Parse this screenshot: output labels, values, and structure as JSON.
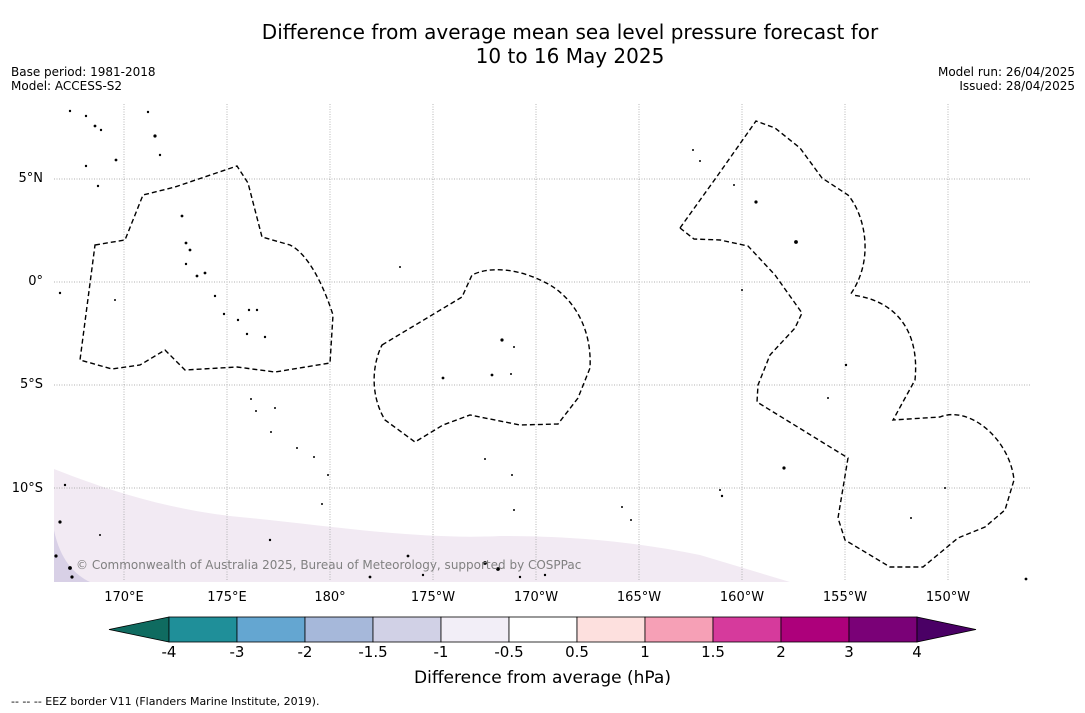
{
  "title_line1": "Difference from average mean sea level pressure forecast for",
  "title_line2": "10 to 16 May 2025",
  "base_period": "Base period: 1981-2018",
  "model": "Model: ACCESS-S2",
  "model_run": "Model run: 26/04/2025",
  "issued": "Issued: 28/04/2025",
  "lat_labels": [
    "5°N",
    "0°",
    "5°S",
    "10°S"
  ],
  "lon_labels": [
    "170°E",
    "175°E",
    "180°",
    "175°W",
    "170°W",
    "165°W",
    "160°W",
    "155°W",
    "150°W"
  ],
  "copyright": "© Commonwealth of Australia 2025, Bureau of Meteorology, supported by COSPPac",
  "colorbar": {
    "title": "Difference from average (hPa)",
    "ticks": [
      "-4",
      "-3",
      "-2",
      "-1.5",
      "-1",
      "-0.5",
      "0.5",
      "1",
      "1.5",
      "2",
      "3",
      "4"
    ],
    "colors": [
      "#0f6b60",
      "#1f8f99",
      "#64a6d1",
      "#a6b8da",
      "#d1d1e6",
      "#f2eef7",
      "#ffffff",
      "#fde0de",
      "#f6a0b6",
      "#d63a9c",
      "#ad007b",
      "#7a0177",
      "#4a0065"
    ]
  },
  "eez_legend": "--  --  -- EEZ border V11 (Flanders Marine Institute, 2019)."
}
